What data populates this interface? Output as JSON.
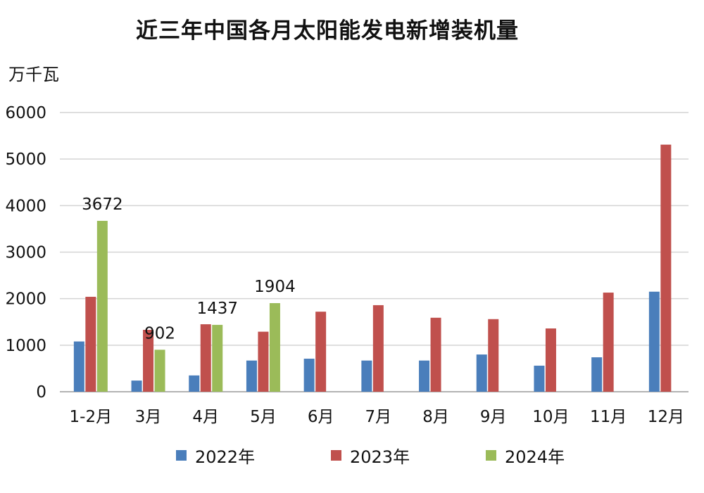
{
  "chart_data": {
    "type": "bar",
    "title": "近三年中国各月太阳能发电新增装机量",
    "ylabel": "万千瓦",
    "xlabel": "",
    "ylim": [
      0,
      6000
    ],
    "yticks": [
      0,
      1000,
      2000,
      3000,
      4000,
      5000,
      6000
    ],
    "grid": true,
    "legend_position": "bottom",
    "categories": [
      "1-2月",
      "3月",
      "4月",
      "5月",
      "6月",
      "7月",
      "8月",
      "9月",
      "10月",
      "11月",
      "12月"
    ],
    "series": [
      {
        "name": "2022年",
        "color": "#4a7ebb",
        "values": [
          1080,
          240,
          350,
          670,
          710,
          670,
          670,
          800,
          560,
          740,
          2150
        ]
      },
      {
        "name": "2023年",
        "color": "#c0504d",
        "values": [
          2040,
          1330,
          1450,
          1290,
          1720,
          1860,
          1590,
          1560,
          1360,
          2130,
          5310
        ]
      },
      {
        "name": "2024年",
        "color": "#9bbb59",
        "values": [
          3672,
          902,
          1437,
          1904,
          null,
          null,
          null,
          null,
          null,
          null,
          null
        ]
      }
    ],
    "data_labels": [
      {
        "series": 2,
        "index": 0,
        "text": "3672"
      },
      {
        "series": 2,
        "index": 1,
        "text": "902"
      },
      {
        "series": 2,
        "index": 2,
        "text": "1437"
      },
      {
        "series": 2,
        "index": 3,
        "text": "1904"
      }
    ]
  }
}
